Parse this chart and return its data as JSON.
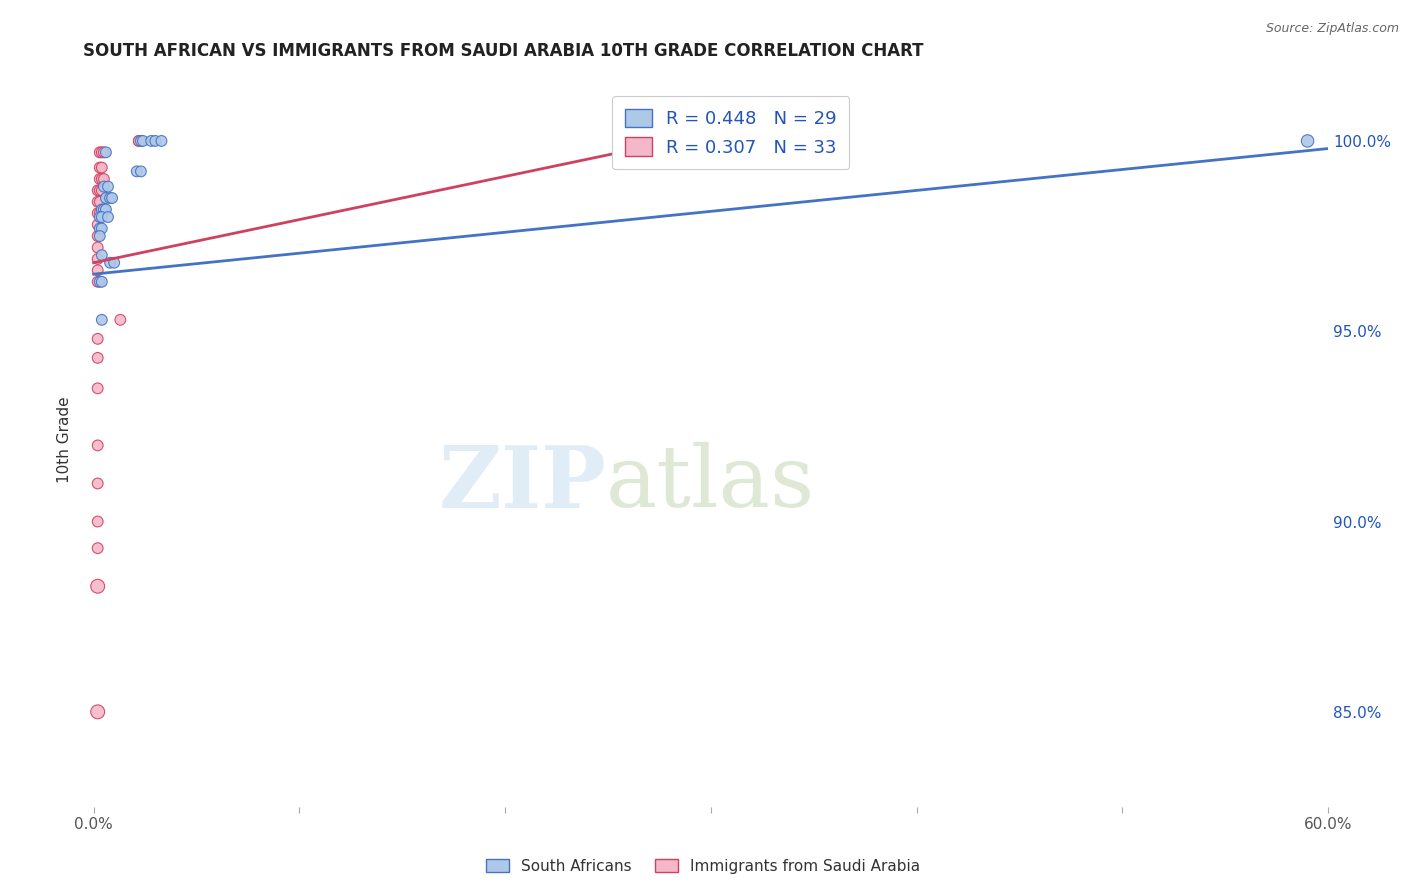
{
  "title": "SOUTH AFRICAN VS IMMIGRANTS FROM SAUDI ARABIA 10TH GRADE CORRELATION CHART",
  "source": "Source: ZipAtlas.com",
  "ylabel": "10th Grade",
  "ylabel_right_ticks": [
    "100.0%",
    "95.0%",
    "90.0%",
    "85.0%"
  ],
  "ylabel_right_vals": [
    1.0,
    0.95,
    0.9,
    0.85
  ],
  "xlim": [
    -0.005,
    0.6
  ],
  "ylim": [
    0.825,
    1.018
  ],
  "blue_color": "#aec8e8",
  "pink_color": "#f4b8c8",
  "line_blue": "#4472c4",
  "line_pink": "#d04060",
  "legend_text_color": "#2255bb",
  "blue_scatter": [
    [
      0.023,
      1.0
    ],
    [
      0.024,
      1.0
    ],
    [
      0.028,
      1.0
    ],
    [
      0.03,
      1.0
    ],
    [
      0.033,
      1.0
    ],
    [
      0.006,
      0.997
    ],
    [
      0.021,
      0.992
    ],
    [
      0.023,
      0.992
    ],
    [
      0.005,
      0.988
    ],
    [
      0.007,
      0.988
    ],
    [
      0.006,
      0.985
    ],
    [
      0.008,
      0.985
    ],
    [
      0.009,
      0.985
    ],
    [
      0.004,
      0.982
    ],
    [
      0.005,
      0.982
    ],
    [
      0.006,
      0.982
    ],
    [
      0.003,
      0.98
    ],
    [
      0.004,
      0.98
    ],
    [
      0.007,
      0.98
    ],
    [
      0.003,
      0.977
    ],
    [
      0.004,
      0.977
    ],
    [
      0.003,
      0.975
    ],
    [
      0.004,
      0.97
    ],
    [
      0.008,
      0.968
    ],
    [
      0.01,
      0.968
    ],
    [
      0.003,
      0.963
    ],
    [
      0.004,
      0.963
    ],
    [
      0.004,
      0.953
    ],
    [
      0.59,
      1.0
    ]
  ],
  "pink_scatter": [
    [
      0.022,
      1.0
    ],
    [
      0.022,
      1.0
    ],
    [
      0.003,
      0.997
    ],
    [
      0.004,
      0.997
    ],
    [
      0.005,
      0.997
    ],
    [
      0.003,
      0.993
    ],
    [
      0.004,
      0.993
    ],
    [
      0.003,
      0.99
    ],
    [
      0.004,
      0.99
    ],
    [
      0.005,
      0.99
    ],
    [
      0.002,
      0.987
    ],
    [
      0.003,
      0.987
    ],
    [
      0.004,
      0.987
    ],
    [
      0.002,
      0.984
    ],
    [
      0.003,
      0.984
    ],
    [
      0.002,
      0.981
    ],
    [
      0.003,
      0.981
    ],
    [
      0.002,
      0.978
    ],
    [
      0.002,
      0.975
    ],
    [
      0.002,
      0.972
    ],
    [
      0.002,
      0.969
    ],
    [
      0.002,
      0.966
    ],
    [
      0.002,
      0.963
    ],
    [
      0.013,
      0.953
    ],
    [
      0.002,
      0.948
    ],
    [
      0.002,
      0.943
    ],
    [
      0.002,
      0.935
    ],
    [
      0.002,
      0.92
    ],
    [
      0.002,
      0.91
    ],
    [
      0.002,
      0.9
    ],
    [
      0.002,
      0.893
    ],
    [
      0.002,
      0.883
    ],
    [
      0.002,
      0.85
    ]
  ],
  "blue_sizes": [
    60,
    60,
    60,
    60,
    60,
    60,
    60,
    60,
    60,
    60,
    60,
    60,
    60,
    60,
    60,
    60,
    60,
    60,
    60,
    60,
    60,
    60,
    60,
    60,
    60,
    60,
    60,
    60,
    80
  ],
  "pink_sizes": [
    60,
    60,
    60,
    60,
    60,
    60,
    60,
    60,
    60,
    60,
    60,
    60,
    60,
    60,
    60,
    60,
    60,
    60,
    60,
    60,
    60,
    60,
    60,
    60,
    60,
    60,
    60,
    60,
    60,
    60,
    60,
    100,
    100
  ],
  "blue_line_x": [
    0.0,
    0.6
  ],
  "blue_line_y": [
    0.965,
    0.998
  ],
  "pink_line_x": [
    0.0,
    0.3
  ],
  "pink_line_y": [
    0.968,
    1.002
  ]
}
